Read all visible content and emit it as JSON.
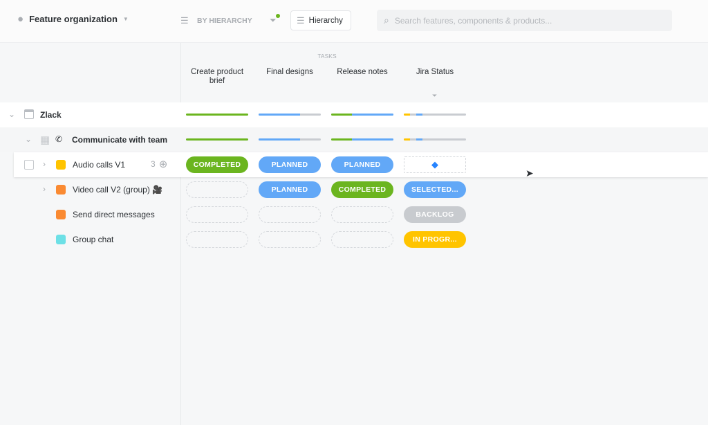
{
  "header": {
    "title": "Feature organization",
    "group_by": "BY HIERARCHY",
    "view_button": "Hierarchy",
    "search_placeholder": "Search features, components & products..."
  },
  "columns": {
    "group_label": "TASKS",
    "items": [
      "Create product brief",
      "Final designs",
      "Release notes",
      "Jira Status"
    ]
  },
  "colors": {
    "completed": "#6bb51f",
    "planned": "#62a8f7",
    "backlog": "#c8cbcf",
    "in_progress": "#ffc400",
    "selected": "#62a8f7"
  },
  "rows": [
    {
      "name": "Zlack",
      "type": "product"
    },
    {
      "name": "Communicate with team",
      "type": "component"
    },
    {
      "name": "Audio calls V1",
      "color": "#ffc400",
      "count": "3",
      "cells": [
        "COMPLETED",
        "PLANNED",
        "PLANNED",
        ""
      ]
    },
    {
      "name": "Video call V2 (group) 🎥",
      "color": "#fa8a32",
      "cells": [
        "",
        "PLANNED",
        "COMPLETED",
        "SELECTED..."
      ]
    },
    {
      "name": "Send direct messages",
      "color": "#fa8a32",
      "cells": [
        "",
        "",
        "",
        "BACKLOG"
      ]
    },
    {
      "name": "Group chat",
      "color": "#6de0e6",
      "cells": [
        "",
        "",
        "",
        "IN PROGR..."
      ]
    }
  ],
  "progress": [
    {
      "completed": 1,
      "planned": 0
    },
    {
      "completed": 0,
      "planned": 0.67
    },
    {
      "completed": 0.33,
      "planned": 0.67
    },
    {
      "in_progress": 0.1,
      "backlog": 0.1,
      "planned": 0.1
    }
  ]
}
